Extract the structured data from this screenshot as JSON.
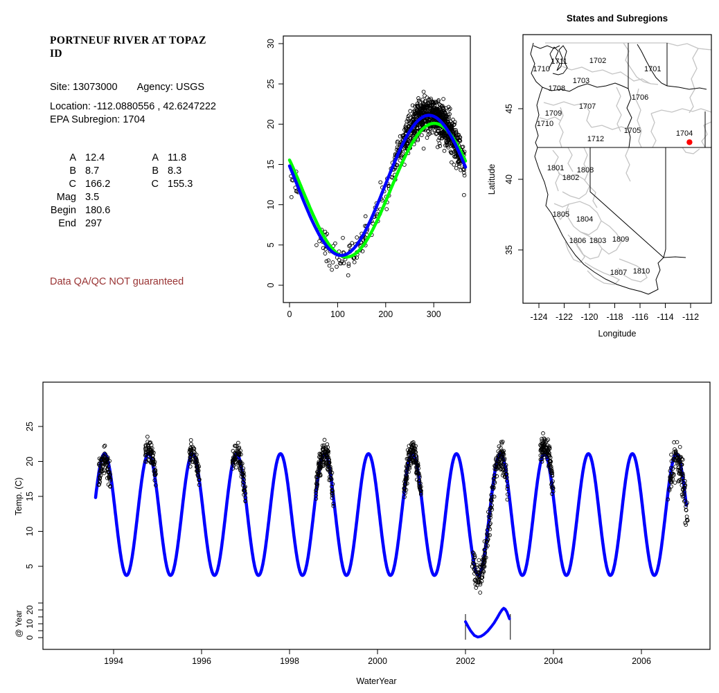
{
  "window": {
    "background": "#ffffff"
  },
  "info_panel": {
    "title_line1": "PORTNEUF RIVER AT TOPAZ",
    "title_line2": "ID",
    "site": "Site: 13073000",
    "agency": "Agency: USGS",
    "location": "Location: -112.0880556 , 42.6247222",
    "epa_subregion": "EPA Subregion: 1704",
    "param_rows": [
      [
        "A",
        "12.4",
        "A",
        "11.8"
      ],
      [
        "B",
        "8.7",
        "B",
        "8.3"
      ],
      [
        "C",
        "166.2",
        "C",
        "155.3"
      ],
      [
        "Mag",
        "3.5",
        "",
        ""
      ],
      [
        "Begin",
        "180.6",
        "",
        ""
      ],
      [
        "End",
        "297",
        "",
        ""
      ]
    ],
    "warning": "Data QA/QC NOT guaranteed",
    "warning_color": "#993333"
  },
  "chart_data": [
    {
      "id": "seasonal_fit",
      "type": "scatter",
      "title": "",
      "xlabel": "",
      "ylabel": "",
      "xticks": [
        0,
        100,
        200,
        300
      ],
      "yticks": [
        0,
        5,
        10,
        15,
        20,
        25,
        30
      ],
      "xlim": [
        -14,
        380
      ],
      "ylim": [
        -1,
        31
      ],
      "marker": {
        "shape": "open-circle",
        "color": "#000000"
      },
      "curves": [
        {
          "name": "sine-fit-green",
          "color": "#00ff00",
          "A": 11.8,
          "B": 8.3,
          "C": 155.3
        },
        {
          "name": "sine-fit-blue",
          "color": "#0000ff",
          "A": 12.4,
          "B": 8.7,
          "C": 166.2
        }
      ]
    },
    {
      "id": "map",
      "type": "map",
      "title": "States and Subregions",
      "xlabel": "Longitude",
      "ylabel": "Latitude",
      "xticks": [
        -124,
        -122,
        -120,
        -118,
        -116,
        -114,
        -112
      ],
      "yticks": [
        35,
        40,
        45
      ],
      "site_marker": {
        "lon": -112.088,
        "lat": 42.625,
        "color": "#ff0000"
      },
      "labels": [
        {
          "text": "1710",
          "lon": -123.8,
          "lat": 47.84
        },
        {
          "text": "1711",
          "lon": -122.4,
          "lat": 48.38
        },
        {
          "text": "1702",
          "lon": -119.34,
          "lat": 48.43
        },
        {
          "text": "1701",
          "lon": -115.0,
          "lat": 47.84
        },
        {
          "text": "1703",
          "lon": -120.66,
          "lat": 47.01
        },
        {
          "text": "1708",
          "lon": -122.58,
          "lat": 46.47
        },
        {
          "text": "1706",
          "lon": -116.0,
          "lat": 45.83
        },
        {
          "text": "1707",
          "lon": -120.16,
          "lat": 45.2
        },
        {
          "text": "1709",
          "lon": -122.85,
          "lat": 44.71
        },
        {
          "text": "1710",
          "lon": -123.51,
          "lat": 43.97
        },
        {
          "text": "1705",
          "lon": -116.6,
          "lat": 43.48
        },
        {
          "text": "1712",
          "lon": -119.51,
          "lat": 42.89
        },
        {
          "text": "1704",
          "lon": -112.49,
          "lat": 43.28
        },
        {
          "text": "1801",
          "lon": -122.68,
          "lat": 40.83
        },
        {
          "text": "1808",
          "lon": -120.33,
          "lat": 40.69
        },
        {
          "text": "1802",
          "lon": -121.48,
          "lat": 40.15
        },
        {
          "text": "1805",
          "lon": -122.25,
          "lat": 37.55
        },
        {
          "text": "1804",
          "lon": -120.38,
          "lat": 37.21
        },
        {
          "text": "1806",
          "lon": -120.93,
          "lat": 35.69
        },
        {
          "text": "1803",
          "lon": -119.34,
          "lat": 35.69
        },
        {
          "text": "1809",
          "lon": -117.53,
          "lat": 35.78
        },
        {
          "text": "1807",
          "lon": -117.7,
          "lat": 33.43
        },
        {
          "text": "1810",
          "lon": -115.89,
          "lat": 33.53
        }
      ]
    },
    {
      "id": "timeseries",
      "type": "line",
      "xlabel": "WaterYear",
      "ylabel": "Temp. (C)",
      "xticks": [
        1994,
        1996,
        1998,
        2000,
        2002,
        2004,
        2006
      ],
      "yticks": [
        5,
        10,
        15,
        20,
        25
      ],
      "curve": {
        "color": "#0000ff",
        "A": 12.4,
        "B": 8.7,
        "C": 166.2,
        "t_start": 1993.59,
        "t_end": 2007.02
      },
      "scatter_clusters": [
        {
          "from": 1993.66,
          "to": 1993.93,
          "n": 78,
          "sd": 1.2,
          "offset": -1.0
        },
        {
          "from": 1994.72,
          "to": 1994.96,
          "n": 72,
          "sd": 0.8,
          "offset": 0.7
        },
        {
          "from": 1995.72,
          "to": 1995.96,
          "n": 65,
          "sd": 0.8,
          "offset": 0.2
        },
        {
          "from": 1996.7,
          "to": 1997.0,
          "n": 91,
          "sd": 0.9,
          "offset": 0.1
        },
        {
          "from": 1998.6,
          "to": 1999.0,
          "n": 143,
          "sd": 0.9,
          "offset": 0.2
        },
        {
          "from": 2000.6,
          "to": 2001.0,
          "n": 143,
          "sd": 0.9,
          "offset": 0.2
        },
        {
          "from": 2002.15,
          "to": 2002.96,
          "n": 208,
          "sd": 1.1,
          "offset": -0.6
        },
        {
          "from": 2003.7,
          "to": 2004.0,
          "n": 104,
          "sd": 0.9,
          "offset": 1.2
        },
        {
          "from": 2006.6,
          "to": 2007.05,
          "n": 117,
          "sd": 1.3,
          "offset": -0.5
        }
      ],
      "inset": {
        "label": "@ Year",
        "yticks": [
          0,
          10,
          20
        ],
        "window": [
          2002.0,
          2003.02
        ],
        "points": [
          [
            2002.0,
            11.5
          ],
          [
            2002.06,
            8.0
          ],
          [
            2002.12,
            4.8
          ],
          [
            2002.2,
            1.6
          ],
          [
            2002.28,
            0.4
          ],
          [
            2002.35,
            0.9
          ],
          [
            2002.42,
            2.3
          ],
          [
            2002.5,
            4.6
          ],
          [
            2002.58,
            7.6
          ],
          [
            2002.65,
            10.6
          ],
          [
            2002.72,
            14.2
          ],
          [
            2002.78,
            17.6
          ],
          [
            2002.83,
            20.0
          ],
          [
            2002.87,
            21.2
          ],
          [
            2002.9,
            20.6
          ],
          [
            2002.94,
            18.6
          ],
          [
            2003.0,
            13.6
          ]
        ]
      }
    }
  ]
}
